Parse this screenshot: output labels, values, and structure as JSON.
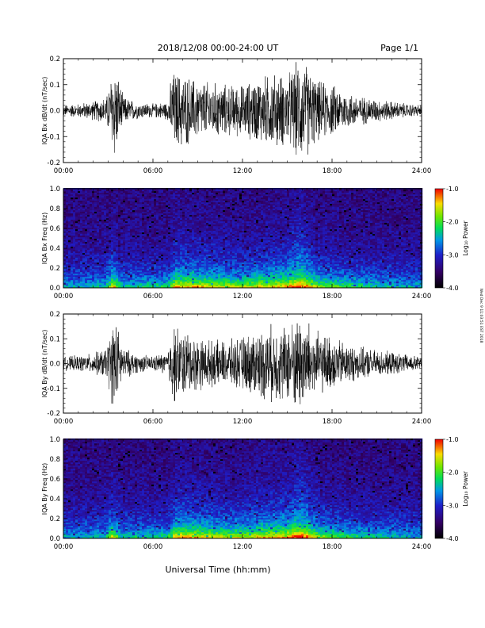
{
  "header": {
    "title": "2018/12/08  00:00-24:00 UT",
    "page": "Page 1/1"
  },
  "footer": {
    "xlabel": "Universal Time (hh:mm)",
    "stamp": "Wed Dec 9 11:03:51 EST 2018"
  },
  "chart_data": [
    {
      "type": "line",
      "title": "",
      "xlabel": "",
      "ylabel": "IQA Bx dB/dt (nT/sec)",
      "xlim": [
        0,
        24
      ],
      "ylim": [
        -0.2,
        0.2
      ],
      "x_ticks": [
        "00:00",
        "06:00",
        "12:00",
        "18:00",
        "24:00"
      ],
      "y_ticks": [
        "-0.2",
        "-0.1",
        "0.0",
        "0.1",
        "0.2"
      ],
      "series": [
        {
          "x": [
            0,
            1,
            2,
            2.9,
            3.4,
            4,
            5,
            6,
            7,
            7.3,
            8,
            9,
            10,
            11,
            12,
            13,
            14,
            15,
            15.8,
            16.3,
            17,
            18,
            19,
            20,
            21,
            22,
            23,
            24
          ],
          "envelope": [
            0.025,
            0.03,
            0.04,
            0.06,
            0.22,
            0.06,
            0.035,
            0.03,
            0.04,
            0.17,
            0.16,
            0.13,
            0.12,
            0.11,
            0.11,
            0.14,
            0.16,
            0.15,
            0.22,
            0.2,
            0.13,
            0.11,
            0.08,
            0.06,
            0.05,
            0.04,
            0.03,
            0.025
          ]
        }
      ]
    },
    {
      "type": "heatmap",
      "title": "",
      "xlabel": "",
      "ylabel": "IQA Bx Freq (Hz)",
      "xlim": [
        0,
        24
      ],
      "ylim": [
        0.0,
        1.0
      ],
      "x_ticks": [
        "00:00",
        "06:00",
        "12:00",
        "18:00",
        "24:00"
      ],
      "y_ticks": [
        "0.0",
        "0.2",
        "0.4",
        "0.6",
        "0.8",
        "1.0"
      ],
      "colorbar": {
        "label": "Log₁₀ Power",
        "ticks": [
          "-1.0",
          "-2.0",
          "-3.0",
          "-4.0"
        ],
        "range": [
          -4.0,
          -1.0
        ]
      },
      "activity": {
        "x": [
          0,
          2.8,
          3.3,
          3.9,
          7.0,
          7.5,
          9,
          11,
          12,
          13,
          14,
          15,
          15.8,
          16.3,
          17,
          18,
          19,
          20,
          21,
          22,
          24
        ],
        "level": [
          0.15,
          0.2,
          0.75,
          0.25,
          0.3,
          0.75,
          0.7,
          0.6,
          0.55,
          0.65,
          0.7,
          0.75,
          1.0,
          0.85,
          0.55,
          0.45,
          0.35,
          0.3,
          0.25,
          0.2,
          0.15
        ]
      }
    },
    {
      "type": "line",
      "title": "",
      "xlabel": "",
      "ylabel": "IQA By dB/dt (nT/sec)",
      "xlim": [
        0,
        24
      ],
      "ylim": [
        -0.2,
        0.2
      ],
      "x_ticks": [
        "00:00",
        "06:00",
        "12:00",
        "18:00",
        "24:00"
      ],
      "y_ticks": [
        "-0.2",
        "-0.1",
        "0.0",
        "0.1",
        "0.2"
      ],
      "series": [
        {
          "x": [
            0,
            1,
            2,
            2.9,
            3.4,
            4,
            5,
            6,
            7,
            7.3,
            8,
            9,
            10,
            11,
            12,
            13,
            14,
            15,
            15.8,
            16.3,
            17,
            18,
            19,
            20,
            21,
            22,
            23,
            24
          ],
          "envelope": [
            0.03,
            0.035,
            0.045,
            0.07,
            0.22,
            0.07,
            0.04,
            0.035,
            0.05,
            0.18,
            0.15,
            0.12,
            0.1,
            0.1,
            0.12,
            0.15,
            0.17,
            0.17,
            0.22,
            0.2,
            0.14,
            0.12,
            0.09,
            0.07,
            0.06,
            0.05,
            0.04,
            0.03
          ]
        }
      ]
    },
    {
      "type": "heatmap",
      "title": "",
      "xlabel": "",
      "ylabel": "IQA By Freq (Hz)",
      "xlim": [
        0,
        24
      ],
      "ylim": [
        0.0,
        1.0
      ],
      "x_ticks": [
        "00:00",
        "06:00",
        "12:00",
        "18:00",
        "24:00"
      ],
      "y_ticks": [
        "0.0",
        "0.2",
        "0.4",
        "0.6",
        "0.8",
        "1.0"
      ],
      "colorbar": {
        "label": "Log₁₀ Power",
        "ticks": [
          "-1.0",
          "-2.0",
          "-3.0",
          "-4.0"
        ],
        "range": [
          -4.0,
          -1.0
        ]
      },
      "activity": {
        "x": [
          0,
          2.8,
          3.3,
          3.9,
          7.0,
          7.5,
          9,
          11,
          12,
          13,
          14,
          15,
          15.8,
          16.3,
          17,
          18,
          19,
          20,
          21,
          22,
          24
        ],
        "level": [
          0.15,
          0.2,
          0.7,
          0.25,
          0.3,
          0.8,
          0.7,
          0.6,
          0.6,
          0.7,
          0.75,
          0.8,
          1.0,
          0.85,
          0.6,
          0.45,
          0.35,
          0.3,
          0.25,
          0.2,
          0.15
        ]
      }
    }
  ]
}
